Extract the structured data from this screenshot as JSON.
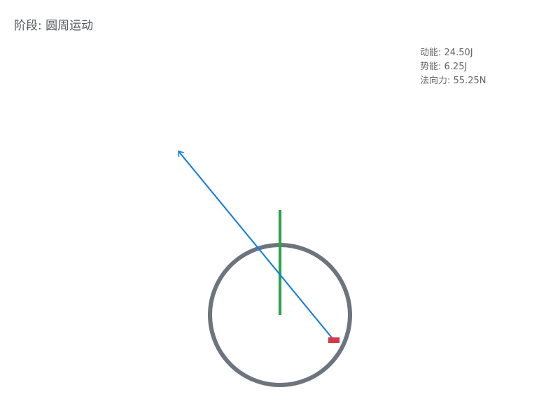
{
  "phase": {
    "label": "阶段",
    "separator": ": ",
    "value": "圆周运动"
  },
  "stats": {
    "kinetic": {
      "label": "动能",
      "value": "24.50J"
    },
    "potential": {
      "label": "势能",
      "value": "6.25J"
    },
    "normal_force": {
      "label": "法向力",
      "value": "55.25N"
    }
  },
  "colors": {
    "track": "#6c757d",
    "block": "#dc3545",
    "height_line": "#28a745",
    "velocity_arrow": "#007bff",
    "text": "#555b61"
  },
  "icons": [
    "loop-track",
    "block",
    "height-indicator",
    "velocity-arrow"
  ]
}
